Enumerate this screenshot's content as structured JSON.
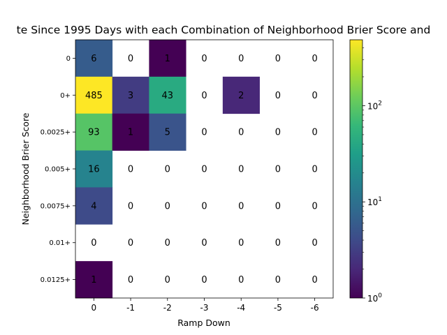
{
  "chart_data": {
    "type": "heatmap",
    "title": "te Since 1995 Days with each Combination of Neighborhood Brier Score and",
    "xlabel": "Ramp Down",
    "ylabel": "Neighborhood Brier Score",
    "x_categories": [
      "0",
      "-1",
      "-2",
      "-3",
      "-4",
      "-5",
      "-6"
    ],
    "y_categories": [
      "0",
      "0+",
      "0.0025+",
      "0.005+",
      "0.0075+",
      "0.01+",
      "0.0125+"
    ],
    "values": [
      [
        6,
        0,
        1,
        0,
        0,
        0,
        0
      ],
      [
        485,
        3,
        43,
        0,
        2,
        0,
        0
      ],
      [
        93,
        1,
        5,
        0,
        0,
        0,
        0
      ],
      [
        16,
        0,
        0,
        0,
        0,
        0,
        0
      ],
      [
        4,
        0,
        0,
        0,
        0,
        0,
        0
      ],
      [
        0,
        0,
        0,
        0,
        0,
        0,
        0
      ],
      [
        1,
        0,
        0,
        0,
        0,
        0,
        0
      ]
    ],
    "color_scale": "log",
    "colormap": "viridis",
    "colorbar_range": [
      1,
      485
    ],
    "colorbar_ticks": [
      {
        "base": "10",
        "exp": "0"
      },
      {
        "base": "10",
        "exp": "1"
      },
      {
        "base": "10",
        "exp": "2"
      }
    ],
    "zero_cells_color": "#ffffff"
  }
}
